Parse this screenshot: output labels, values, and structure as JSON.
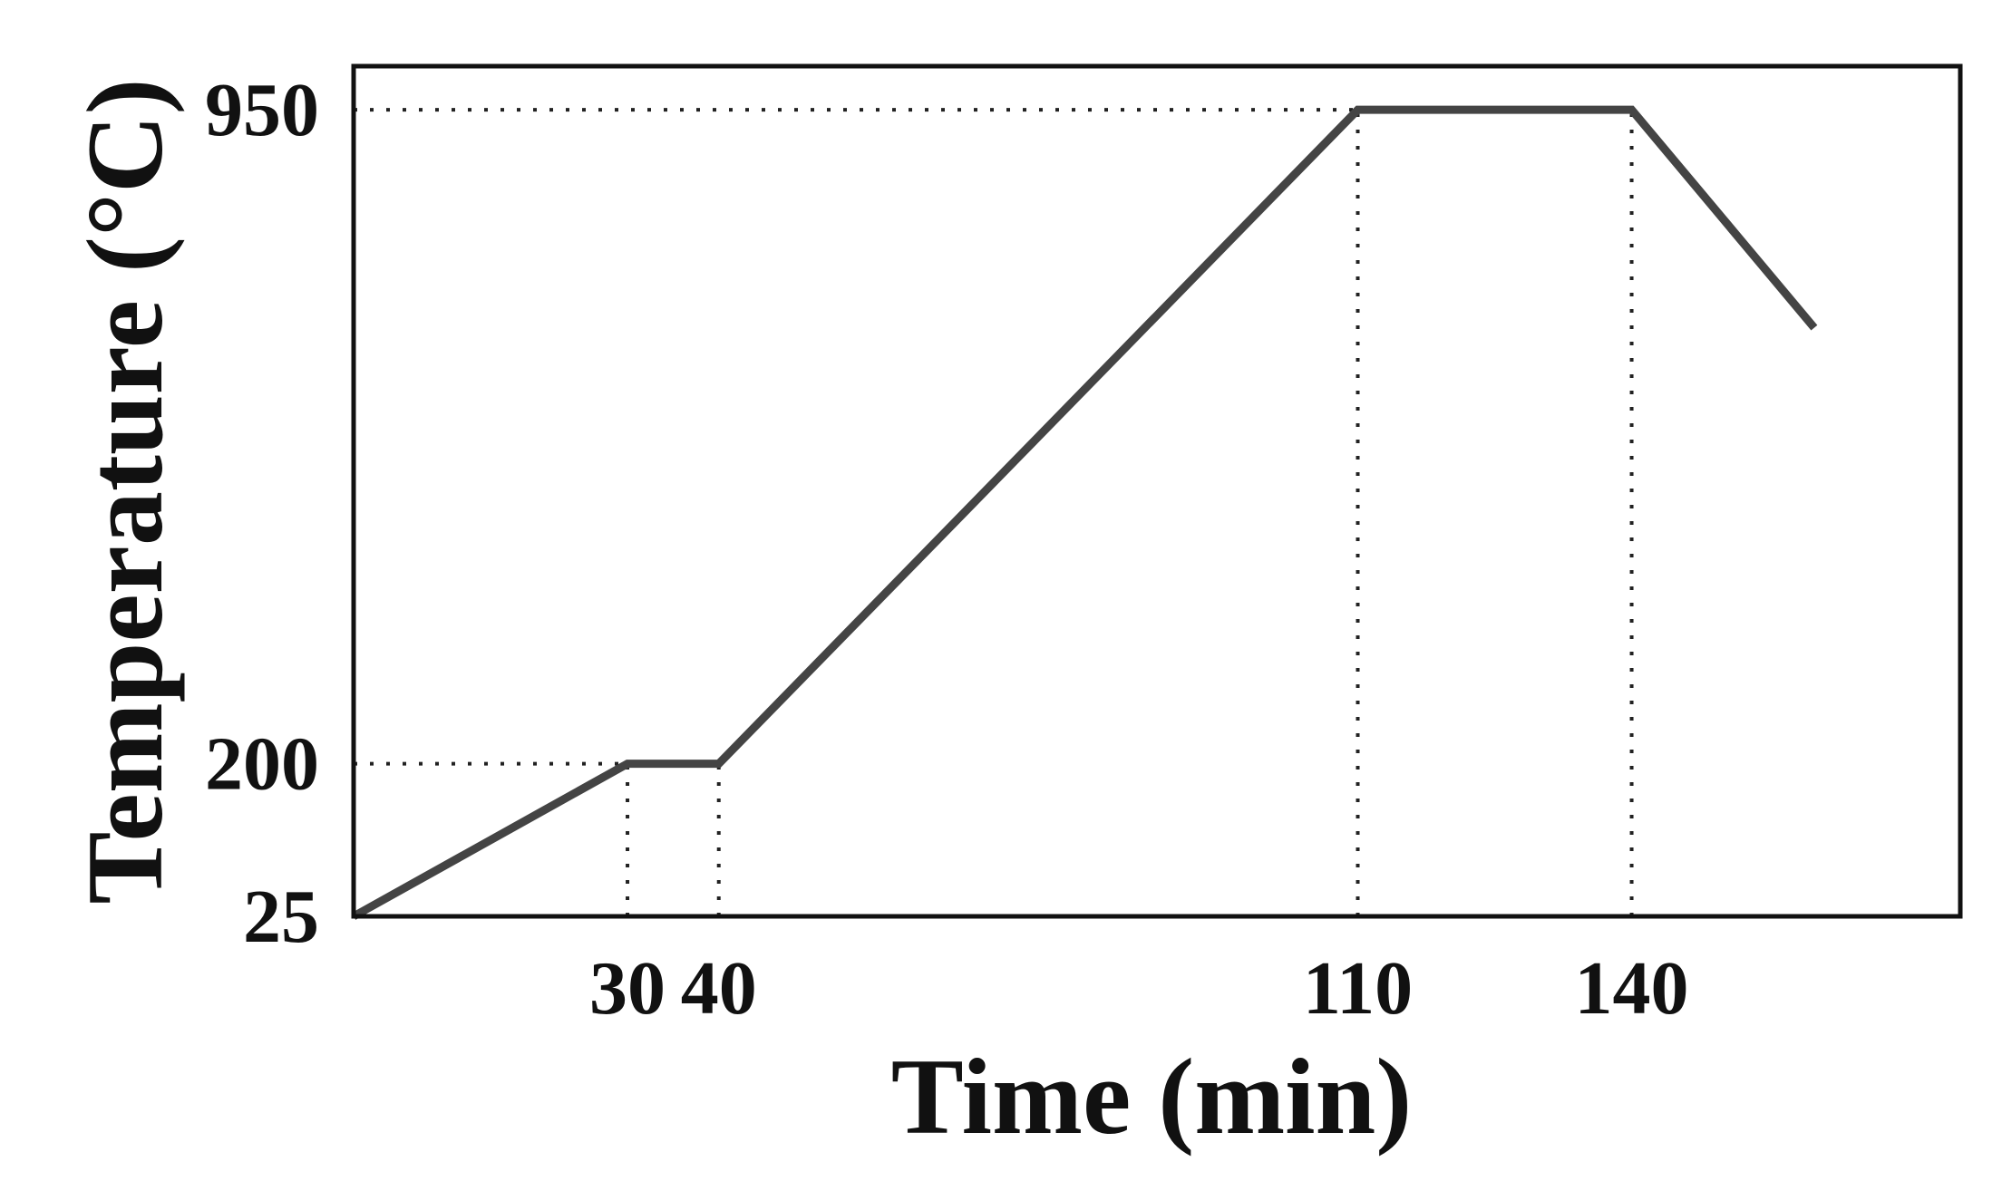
{
  "chart_data": {
    "type": "line",
    "title": "",
    "xlabel": "Time (min)",
    "ylabel": "Temperature (°C)",
    "xlim": [
      0,
      176
    ],
    "ylim": [
      25,
      1000
    ],
    "x_ticks": [
      {
        "value": 30,
        "label": "30"
      },
      {
        "value": 40,
        "label": "40"
      },
      {
        "value": 110,
        "label": "110"
      },
      {
        "value": 140,
        "label": "140"
      }
    ],
    "y_ticks": [
      {
        "value": 25,
        "label": "25"
      },
      {
        "value": 200,
        "label": "200"
      },
      {
        "value": 950,
        "label": "950"
      }
    ],
    "grid": false,
    "reference_lines": {
      "horizontal": [
        {
          "y": 200,
          "x_end": 30
        },
        {
          "y": 950,
          "x_end": 110
        }
      ],
      "vertical": [
        {
          "x": 30,
          "y_end": 200
        },
        {
          "x": 40,
          "y_end": 200
        },
        {
          "x": 110,
          "y_end": 950
        },
        {
          "x": 140,
          "y_end": 950
        }
      ]
    },
    "series": [
      {
        "x": [
          0,
          30,
          40,
          110,
          140,
          160
        ],
        "y": [
          25,
          200,
          200,
          950,
          950,
          700
        ]
      }
    ],
    "colors": {
      "line": "#444444",
      "frame": "#111111",
      "reference": "#222222"
    }
  }
}
